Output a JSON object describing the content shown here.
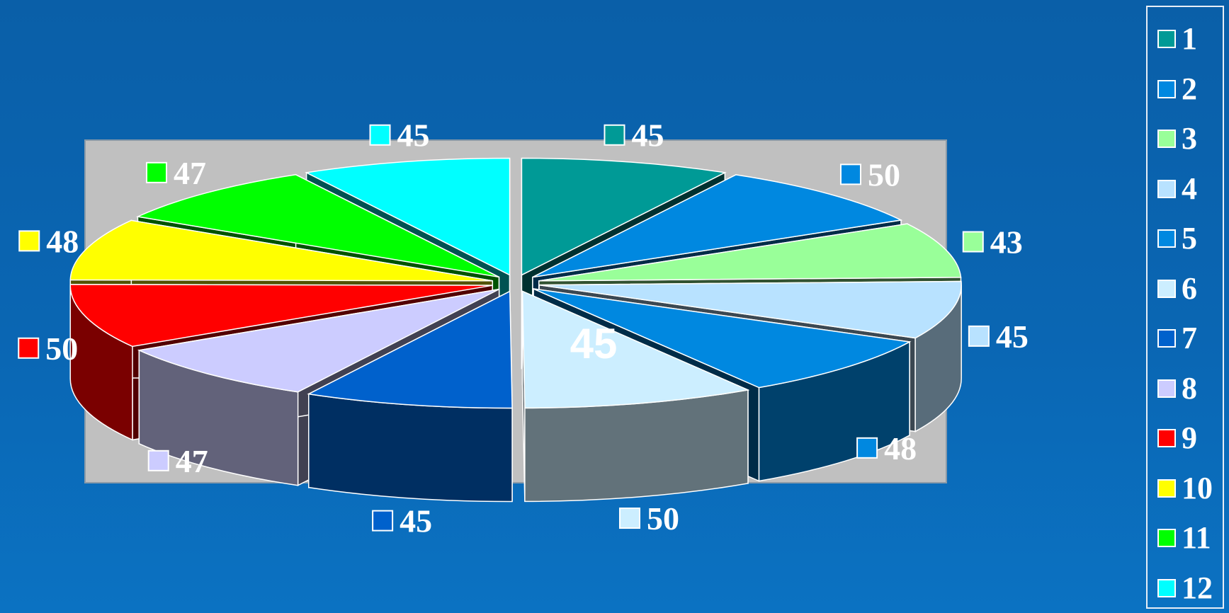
{
  "chart_data": {
    "type": "pie",
    "style": "3d-exploded",
    "categories": [
      "1",
      "2",
      "3",
      "4",
      "5",
      "6",
      "7",
      "8",
      "9",
      "10",
      "11",
      "12"
    ],
    "values": [
      45,
      50,
      43,
      45,
      48,
      50,
      45,
      47,
      50,
      48,
      47,
      45
    ],
    "colors": [
      "#009a96",
      "#0088e0",
      "#99ff99",
      "#b8e2ff",
      "#0088e0",
      "#cceeff",
      "#0061cc",
      "#ccccff",
      "#ff0000",
      "#ffff00",
      "#00ff00",
      "#00ffff"
    ],
    "plot_background": "#c0c0c0",
    "legend_position": "right",
    "inner_label": "45",
    "title": "",
    "xlabel": "",
    "ylabel": ""
  }
}
